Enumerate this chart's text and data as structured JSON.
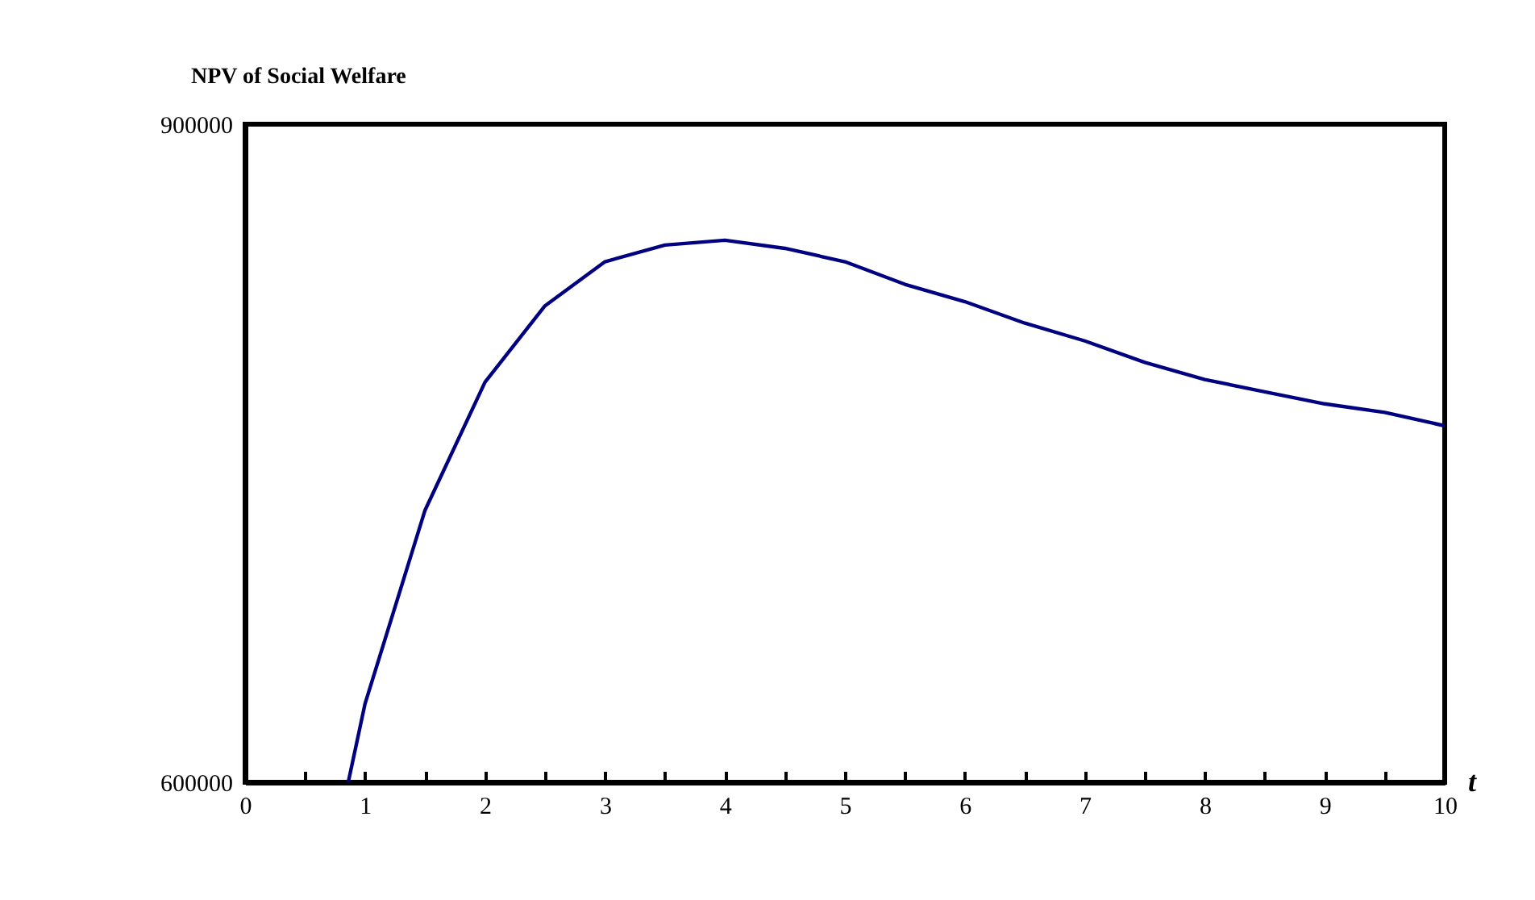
{
  "chart_data": {
    "type": "line",
    "ylabel": "NPV of Social Welfare",
    "xlabel": "t",
    "x": [
      0.86,
      1,
      1.5,
      2,
      2.5,
      3,
      3.5,
      4,
      4.5,
      5,
      5.5,
      6,
      6.5,
      7,
      7.5,
      8,
      8.5,
      9,
      9.5,
      10
    ],
    "series": [
      {
        "color": "#000080",
        "values": [
          600000,
          635800,
          724000,
          782400,
          817200,
          837300,
          844900,
          847100,
          843400,
          837300,
          827000,
          819100,
          809300,
          801200,
          791400,
          783600,
          778000,
          772500,
          768600,
          762500
        ]
      }
    ],
    "xlim": [
      0,
      10
    ],
    "xticks": [
      0,
      {
        "value": 0.5,
        "label": null
      },
      1,
      {
        "value": 1.5,
        "label": null
      },
      2,
      {
        "value": 2.5,
        "label": null
      },
      3,
      {
        "value": 3.5,
        "label": null
      },
      4,
      {
        "value": 4.5,
        "label": null
      },
      5,
      {
        "value": 5.5,
        "label": null
      },
      6,
      {
        "value": 6.5,
        "label": null
      },
      7,
      {
        "value": 7.5,
        "label": null
      },
      8,
      {
        "value": 8.5,
        "label": null
      },
      9,
      {
        "value": 9.5,
        "label": null
      },
      10
    ],
    "ylim": [
      600000,
      900000
    ],
    "yticks": [
      600000,
      900000
    ],
    "marker": "none",
    "line_style": "solid"
  }
}
